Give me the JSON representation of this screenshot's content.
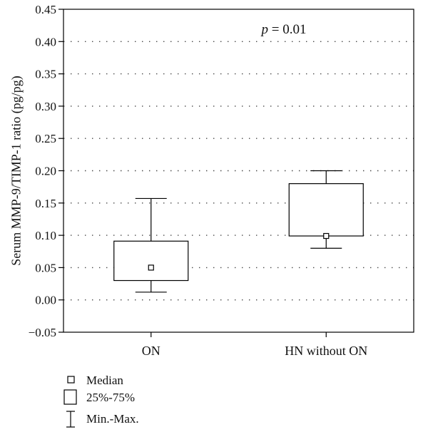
{
  "chart_data": {
    "type": "boxplot",
    "ylabel": "Serum MMP-9/TIMP-1 ratio (pg/pg)",
    "ylim": [
      -0.05,
      0.45
    ],
    "yticks": [
      -0.05,
      0.0,
      0.05,
      0.1,
      0.15,
      0.2,
      0.25,
      0.3,
      0.35,
      0.4,
      0.45
    ],
    "ytick_labels": [
      "−0.05",
      "0.00",
      "0.05",
      "0.10",
      "0.15",
      "0.20",
      "0.25",
      "0.30",
      "0.35",
      "0.40",
      "0.45"
    ],
    "grid": "horizontal-dotted",
    "categories": [
      "ON",
      "HN without ON"
    ],
    "boxes": [
      {
        "category": "ON",
        "min": 0.012,
        "q1": 0.03,
        "median": 0.05,
        "q3": 0.091,
        "max": 0.157
      },
      {
        "category": "HN without ON",
        "min": 0.08,
        "q1": 0.099,
        "median": 0.099,
        "q3": 0.18,
        "max": 0.2
      }
    ],
    "annotation": {
      "italic": "p",
      "rest": " = 0.01"
    },
    "legend": {
      "placement": "bottom-left",
      "entries": [
        "Median",
        "25%-75%",
        "Min.-Max."
      ]
    }
  }
}
